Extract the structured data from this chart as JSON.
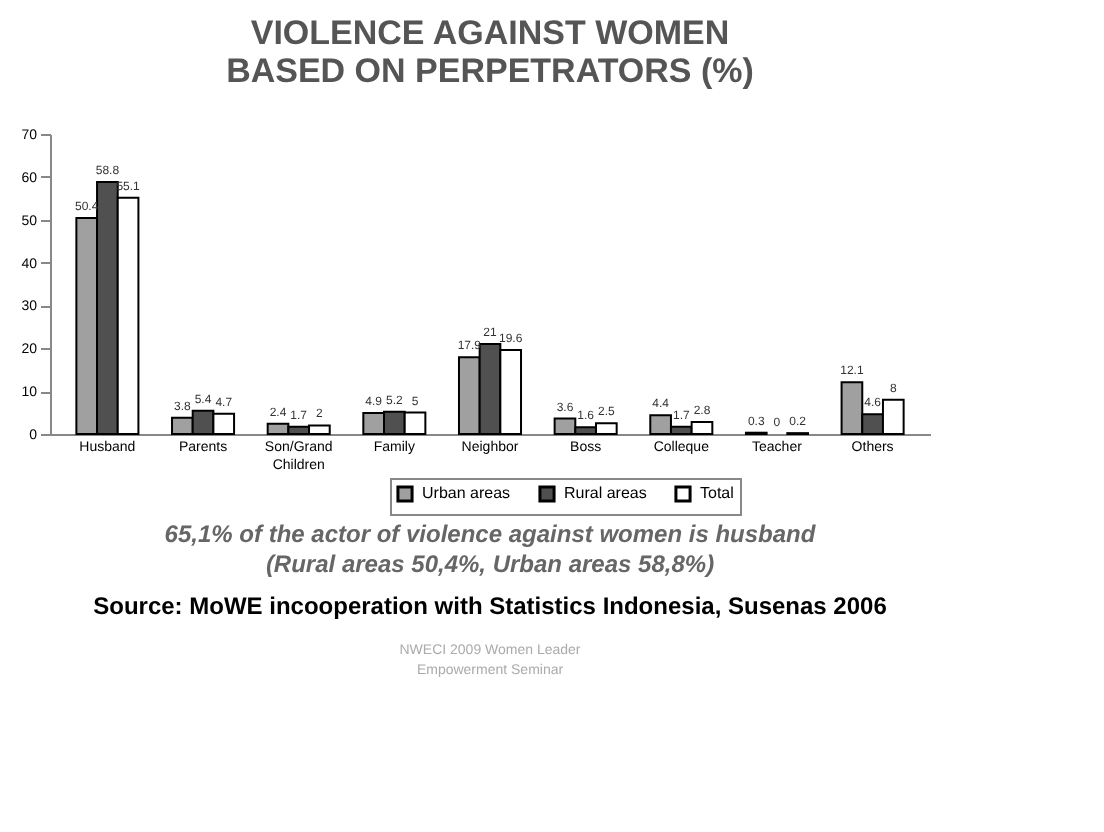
{
  "chart_data": {
    "type": "bar",
    "title": [
      "VIOLENCE AGAINST WOMEN",
      "BASED ON PERPETRATORS (%)"
    ],
    "categories": [
      "Husband",
      "Parents",
      "Son/Grand Children",
      "Family",
      "Neighbor",
      "Boss",
      "Colleque",
      "Teacher",
      "Others"
    ],
    "series": [
      {
        "name": "Urban areas",
        "color": "#a0a0a0",
        "values": [
          50.4,
          3.8,
          2.4,
          4.9,
          17.9,
          3.6,
          4.4,
          0.3,
          12.1
        ]
      },
      {
        "name": "Rural areas",
        "color": "#505050",
        "values": [
          58.8,
          5.4,
          1.7,
          5.2,
          21,
          1.6,
          1.7,
          0,
          4.6
        ]
      },
      {
        "name": "Total",
        "color": "#ffffff",
        "values": [
          55.1,
          4.7,
          2,
          5,
          19.6,
          2.5,
          2.8,
          0.2,
          8
        ]
      }
    ],
    "ylim": [
      0,
      70
    ],
    "yticks": [
      0,
      10,
      20,
      30,
      40,
      50,
      60,
      70
    ],
    "grid": false,
    "legend": "bottom",
    "data_labels": true,
    "annotations": [
      "65,1% of the actor of violence against women is husband",
      "(Rural areas 50,4%, Urban areas 58,8%)",
      "Source: MoWE incooperation with Statistics Indonesia, Susenas 2006",
      "NWECI 2009 Women Leader",
      "Empowerment Seminar"
    ]
  }
}
